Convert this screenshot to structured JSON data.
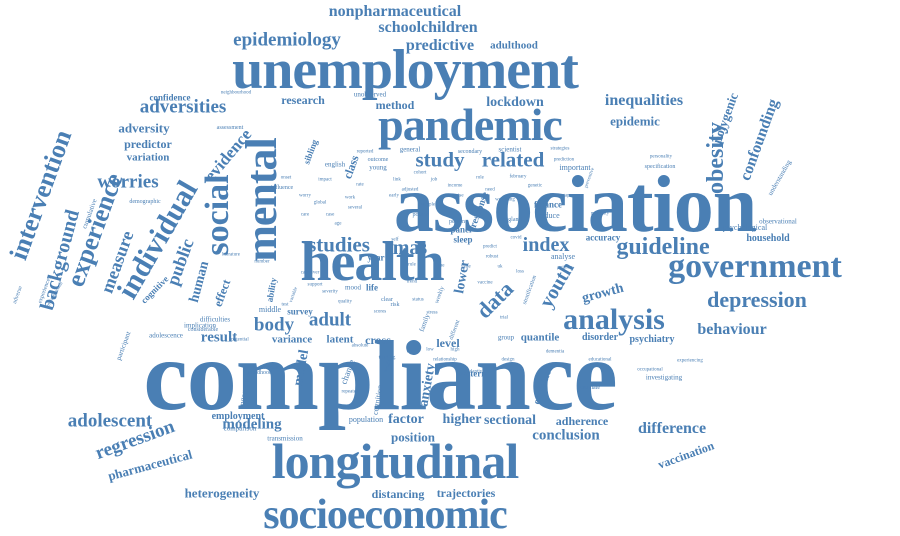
{
  "word_cloud": {
    "color": "#4a7fb4",
    "words": [
      {
        "text": "compliance",
        "id": "word-compliance"
      },
      {
        "text": "association",
        "id": "word-association"
      },
      {
        "text": "health",
        "id": "word-health"
      },
      {
        "text": "unemployment",
        "id": "word-unemployment"
      },
      {
        "text": "longitudinal",
        "id": "word-longitudinal"
      },
      {
        "text": "socioeconomic",
        "id": "word-socioeconomic"
      },
      {
        "text": "pandemic",
        "id": "word-pandemic"
      },
      {
        "text": "mental",
        "id": "word-mental"
      },
      {
        "text": "government",
        "id": "word-government"
      },
      {
        "text": "social",
        "id": "word-social"
      },
      {
        "text": "individual",
        "id": "word-individual"
      },
      {
        "text": "analysis",
        "id": "word-analysis"
      },
      {
        "text": "studies",
        "id": "word-studies"
      },
      {
        "text": "mas",
        "id": "word-mas"
      },
      {
        "text": "index",
        "id": "word-index"
      },
      {
        "text": "guideline",
        "id": "word-guideline"
      },
      {
        "text": "depression",
        "id": "word-depression"
      },
      {
        "text": "obesity",
        "id": "word-obesity"
      },
      {
        "text": "study",
        "id": "word-study"
      },
      {
        "text": "related",
        "id": "word-related"
      },
      {
        "text": "epidemiology",
        "id": "word-epidemiology"
      },
      {
        "text": "nonpharmaceutical",
        "id": "word-nonpharmaceutical"
      },
      {
        "text": "schoolchildren",
        "id": "word-schoolchildren"
      },
      {
        "text": "predictive",
        "id": "word-predictive"
      },
      {
        "text": "adulthood",
        "id": "word-adulthood"
      },
      {
        "text": "adversities",
        "id": "word-adversities"
      },
      {
        "text": "adversity",
        "id": "word-adversity"
      },
      {
        "text": "lockdown",
        "id": "word-lockdown"
      },
      {
        "text": "inequalities",
        "id": "word-inequalities"
      },
      {
        "text": "epidemic",
        "id": "word-epidemic"
      },
      {
        "text": "research",
        "id": "word-research"
      },
      {
        "text": "method",
        "id": "word-method"
      },
      {
        "text": "intervention",
        "id": "word-intervention"
      },
      {
        "text": "experience",
        "id": "word-experience"
      },
      {
        "text": "background",
        "id": "word-background"
      },
      {
        "text": "worries",
        "id": "word-worries"
      },
      {
        "text": "measure",
        "id": "word-measure"
      },
      {
        "text": "public",
        "id": "word-public"
      },
      {
        "text": "evidence",
        "id": "word-evidence"
      },
      {
        "text": "predictor",
        "id": "word-predictor"
      },
      {
        "text": "variation",
        "id": "word-variation"
      },
      {
        "text": "confidence",
        "id": "word-confidence"
      },
      {
        "text": "polygenic",
        "id": "word-polygenic"
      },
      {
        "text": "confounding",
        "id": "word-confounding"
      },
      {
        "text": "youth",
        "id": "word-youth"
      },
      {
        "text": "growth",
        "id": "word-growth"
      },
      {
        "text": "data",
        "id": "word-data"
      },
      {
        "text": "adult",
        "id": "word-adult"
      },
      {
        "text": "body",
        "id": "word-body"
      },
      {
        "text": "behaviour",
        "id": "word-behaviour"
      },
      {
        "text": "household",
        "id": "word-household"
      },
      {
        "text": "psychological",
        "id": "word-psychological"
      },
      {
        "text": "accuracy",
        "id": "word-accuracy"
      },
      {
        "text": "result",
        "id": "word-result"
      },
      {
        "text": "variance",
        "id": "word-variance"
      },
      {
        "text": "latent",
        "id": "word-latent"
      },
      {
        "text": "cross",
        "id": "word-cross"
      },
      {
        "text": "level",
        "id": "word-level"
      },
      {
        "text": "quantile",
        "id": "word-quantile"
      },
      {
        "text": "disorder",
        "id": "word-disorder"
      },
      {
        "text": "psychiatry",
        "id": "word-psychiatry"
      },
      {
        "text": "adolescent",
        "id": "word-adolescent"
      },
      {
        "text": "regression",
        "id": "word-regression"
      },
      {
        "text": "pharmaceutical",
        "id": "word-pharmaceutical"
      },
      {
        "text": "modeling",
        "id": "word-modeling"
      },
      {
        "text": "model",
        "id": "word-model"
      },
      {
        "text": "employment",
        "id": "word-employment"
      },
      {
        "text": "anxiety",
        "id": "word-anxiety"
      },
      {
        "text": "factor",
        "id": "word-factor"
      },
      {
        "text": "higher",
        "id": "word-higher"
      },
      {
        "text": "position",
        "id": "word-position"
      },
      {
        "text": "sectional",
        "id": "word-sectional"
      },
      {
        "text": "conclusion",
        "id": "word-conclusion"
      },
      {
        "text": "adherence",
        "id": "word-adherence"
      },
      {
        "text": "difference",
        "id": "word-difference"
      },
      {
        "text": "vaccination",
        "id": "word-vaccination"
      },
      {
        "text": "heterogeneity",
        "id": "word-heterogeneity"
      },
      {
        "text": "distancing",
        "id": "word-distancing"
      },
      {
        "text": "trajectories",
        "id": "word-trajectories"
      },
      {
        "text": "pattern",
        "id": "word-pattern"
      },
      {
        "text": "explained",
        "id": "word-explained"
      },
      {
        "text": "investigating",
        "id": "word-investigating"
      },
      {
        "text": "population",
        "id": "word-population"
      },
      {
        "text": "engagement",
        "id": "word-engagement"
      },
      {
        "text": "cognition",
        "id": "word-cognition"
      },
      {
        "text": "transmission",
        "id": "word-transmission"
      },
      {
        "text": "comparison",
        "id": "word-comparison"
      },
      {
        "text": "human",
        "id": "word-human"
      },
      {
        "text": "effect",
        "id": "word-effect"
      },
      {
        "text": "ability",
        "id": "word-ability"
      },
      {
        "text": "cognitive",
        "id": "word-cognitive"
      },
      {
        "text": "survey",
        "id": "word-survey"
      },
      {
        "text": "middle",
        "id": "word-middle"
      },
      {
        "text": "difficulties",
        "id": "word-difficulties"
      },
      {
        "text": "implication",
        "id": "word-implication"
      },
      {
        "text": "adolescence",
        "id": "word-adolescence"
      },
      {
        "text": "participant",
        "id": "word-participant"
      },
      {
        "text": "cumulative",
        "id": "word-cumulative"
      },
      {
        "text": "adverse",
        "id": "word-adverse"
      },
      {
        "text": "lower",
        "id": "word-lower"
      },
      {
        "text": "mood",
        "id": "word-mood"
      },
      {
        "text": "life",
        "id": "word-life"
      },
      {
        "text": "sleep",
        "id": "word-sleep"
      },
      {
        "text": "finance",
        "id": "word-finance"
      },
      {
        "text": "reduce",
        "id": "word-reduce"
      },
      {
        "text": "scientist",
        "id": "word-scientist"
      },
      {
        "text": "important",
        "id": "word-important"
      },
      {
        "text": "general",
        "id": "word-general"
      },
      {
        "text": "english",
        "id": "word-english"
      },
      {
        "text": "young",
        "id": "word-young"
      },
      {
        "text": "outcome",
        "id": "word-outcome"
      },
      {
        "text": "assessment",
        "id": "word-assessment"
      },
      {
        "text": "sibling",
        "id": "word-sibling"
      },
      {
        "text": "class",
        "id": "word-class"
      },
      {
        "text": "unobserved",
        "id": "word-unobserved"
      },
      {
        "text": "specification",
        "id": "word-specification"
      },
      {
        "text": "understanding",
        "id": "word-understanding"
      },
      {
        "text": "observational",
        "id": "word-observational"
      },
      {
        "text": "year",
        "id": "word-year"
      },
      {
        "text": "panel",
        "id": "word-panel"
      },
      {
        "text": "response",
        "id": "word-response"
      },
      {
        "text": "analyse",
        "id": "word-analyse"
      },
      {
        "text": "change",
        "id": "word-change"
      },
      {
        "text": "influence",
        "id": "word-influence"
      },
      {
        "text": "increase",
        "id": "word-increase"
      },
      {
        "text": "demographic",
        "id": "word-demographic"
      },
      {
        "text": "childhood",
        "id": "word-childhood"
      },
      {
        "text": "experiences",
        "id": "word-experiences"
      },
      {
        "text": "environmental",
        "id": "word-environmental"
      },
      {
        "text": "considerable",
        "id": "word-considerable"
      },
      {
        "text": "estimate",
        "id": "word-estimate"
      },
      {
        "text": "group",
        "id": "word-group"
      },
      {
        "text": "policy",
        "id": "word-policy"
      },
      {
        "text": "person",
        "id": "word-person"
      },
      {
        "text": "different",
        "id": "word-different"
      },
      {
        "text": "family",
        "id": "word-family"
      },
      {
        "text": "weekly",
        "id": "word-weekly"
      },
      {
        "text": "clear",
        "id": "word-clear"
      },
      {
        "text": "risk",
        "id": "word-risk"
      },
      {
        "text": "england",
        "id": "word-england"
      },
      {
        "text": "secondary",
        "id": "word-secondary"
      },
      {
        "text": "stratification",
        "id": "word-stratification"
      },
      {
        "text": "preventive",
        "id": "word-preventive"
      },
      {
        "text": "personality",
        "id": "word-personality"
      },
      {
        "text": "educational",
        "id": "word-educational"
      },
      {
        "text": "occupational",
        "id": "word-occupational"
      },
      {
        "text": "mortality",
        "id": "word-mortality"
      },
      {
        "text": "opinion",
        "id": "word-opinion"
      },
      {
        "text": "february",
        "id": "word-february"
      },
      {
        "text": "prediction",
        "id": "word-prediction"
      },
      {
        "text": "strategies",
        "id": "word-strategies"
      },
      {
        "text": "reported",
        "id": "word-reported"
      },
      {
        "text": "neighbourhood",
        "id": "word-neighbourhood"
      },
      {
        "text": "relationship",
        "id": "word-relationship"
      },
      {
        "text": "robust",
        "id": "word-robust"
      },
      {
        "text": "predict",
        "id": "word-predict"
      },
      {
        "text": "several",
        "id": "word-several"
      },
      {
        "text": "number",
        "id": "word-number"
      },
      {
        "text": "literature",
        "id": "word-literature"
      },
      {
        "text": "potential",
        "id": "word-potential"
      },
      {
        "text": "impact",
        "id": "word-impact"
      },
      {
        "text": "dementia",
        "id": "word-dementia"
      },
      {
        "text": "repeated",
        "id": "word-repeated"
      },
      {
        "text": "thinking",
        "id": "word-thinking"
      },
      {
        "text": "weight",
        "id": "word-weight"
      },
      {
        "text": "quality",
        "id": "word-quality"
      },
      {
        "text": "severity",
        "id": "word-severity"
      },
      {
        "text": "trend",
        "id": "word-trend"
      },
      {
        "text": "adaptive",
        "id": "word-adaptive"
      },
      {
        "text": "design",
        "id": "word-design"
      },
      {
        "text": "experiencing",
        "id": "word-experiencing"
      },
      {
        "text": "absolute",
        "id": "word-absolute"
      },
      {
        "text": "caregiver",
        "id": "word-caregiver"
      },
      {
        "text": "support",
        "id": "word-support"
      },
      {
        "text": "cohort",
        "id": "word-cohort"
      },
      {
        "text": "variable",
        "id": "word-variable"
      },
      {
        "text": "vaccine",
        "id": "word-vaccine"
      },
      {
        "text": "rate",
        "id": "word-rate"
      },
      {
        "text": "global",
        "id": "word-global"
      },
      {
        "text": "sample",
        "id": "word-sample"
      },
      {
        "text": "early",
        "id": "word-early"
      },
      {
        "text": "wellbeing",
        "id": "word-wellbeing"
      },
      {
        "text": "income",
        "id": "word-income"
      },
      {
        "text": "adjusted",
        "id": "word-adjusted"
      },
      {
        "text": "genetic",
        "id": "word-genetic"
      },
      {
        "text": "scores",
        "id": "word-scores"
      },
      {
        "text": "status",
        "id": "word-status"
      },
      {
        "text": "trial",
        "id": "word-trial"
      },
      {
        "text": "onset",
        "id": "word-onset"
      },
      {
        "text": "worry",
        "id": "word-worry"
      },
      {
        "text": "stress",
        "id": "word-stress"
      },
      {
        "text": "covid",
        "id": "word-covid"
      },
      {
        "text": "rule",
        "id": "word-rule"
      },
      {
        "text": "time",
        "id": "word-time"
      },
      {
        "text": "age",
        "id": "word-age"
      },
      {
        "text": "sex",
        "id": "word-sex"
      },
      {
        "text": "gene",
        "id": "word-gene"
      },
      {
        "text": "uk",
        "id": "word-uk"
      },
      {
        "text": "work",
        "id": "word-work"
      },
      {
        "text": "rise",
        "id": "word-rise"
      },
      {
        "text": "job",
        "id": "word-job"
      },
      {
        "text": "loss",
        "id": "word-loss"
      },
      {
        "text": "self",
        "id": "word-self"
      },
      {
        "text": "test",
        "id": "word-test"
      },
      {
        "text": "high",
        "id": "word-high"
      },
      {
        "text": "low",
        "id": "word-low"
      },
      {
        "text": "use",
        "id": "word-use"
      },
      {
        "text": "link",
        "id": "word-link"
      },
      {
        "text": "role",
        "id": "word-role"
      },
      {
        "text": "case",
        "id": "word-case"
      },
      {
        "text": "care",
        "id": "word-care"
      },
      {
        "text": "need",
        "id": "word-need"
      },
      {
        "text": "tool",
        "id": "word-tool"
      },
      {
        "text": "gap",
        "id": "word-gap"
      }
    ]
  }
}
